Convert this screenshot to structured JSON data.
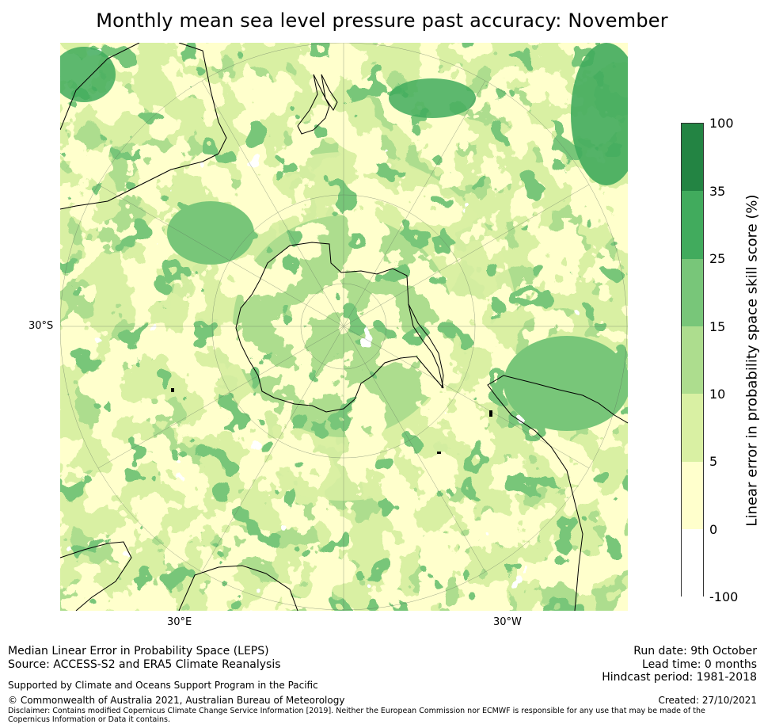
{
  "title": "Monthly mean sea level pressure past accuracy: November",
  "map": {
    "projection": "south-polar-stereographic",
    "lat_label": "30°S",
    "lon_labels": [
      "30°E",
      "30°W"
    ]
  },
  "colorbar": {
    "label": "Linear error in probability space skill score (%)",
    "ticks": [
      "100",
      "35",
      "25",
      "15",
      "10",
      "5",
      "0",
      "-100"
    ],
    "bins": [
      {
        "range": "-100 to 0",
        "color": "#ffffff"
      },
      {
        "range": "0 to 5",
        "color": "#ffffcc"
      },
      {
        "range": "5 to 10",
        "color": "#d9f0a3"
      },
      {
        "range": "10 to 15",
        "color": "#addd8e"
      },
      {
        "range": "15 to 25",
        "color": "#78c679"
      },
      {
        "range": "25 to 35",
        "color": "#41ab5d"
      },
      {
        "range": "35 to 100",
        "color": "#238443"
      }
    ]
  },
  "footer": {
    "left1": "Median Linear Error in Probability Space (LEPS)",
    "left2": "Source: ACCESS-S2 and ERA5 Climate Reanalysis",
    "supported": "Supported by Climate and Oceans Support Program in the Pacific",
    "copyright": "© Commonwealth of Australia 2021, Australian Bureau of Meteorology",
    "run_date": "Run date: 9th October",
    "lead_time": "Lead time: 0 months",
    "hindcast": "Hindcast period: 1981-2018",
    "created": "Created: 27/10/2021",
    "disclaimer": "Disclaimer: Contains modified Copernicus Climate Change Service Information [2019]. Neither the European Commission nor ECMWF is responsible for any use that may be made of the Copernicus Information or Data it contains."
  }
}
